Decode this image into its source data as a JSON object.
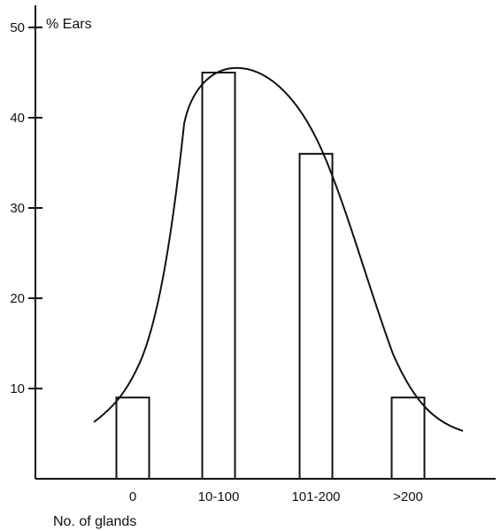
{
  "chart_data": {
    "type": "bar",
    "title": "",
    "ylabel": "% Ears",
    "xlabel": "No. of glands",
    "ylim": [
      0,
      50
    ],
    "yticks": [
      10,
      20,
      30,
      40,
      50
    ],
    "categories": [
      "0",
      "10-100",
      "101-200",
      ">200"
    ],
    "values": [
      9,
      45,
      36,
      9
    ],
    "grid": false,
    "legend": "none",
    "overlay": "smooth bell-shaped curve over bars",
    "colors": {
      "ink": "#111111",
      "background": "#ffffff"
    }
  }
}
